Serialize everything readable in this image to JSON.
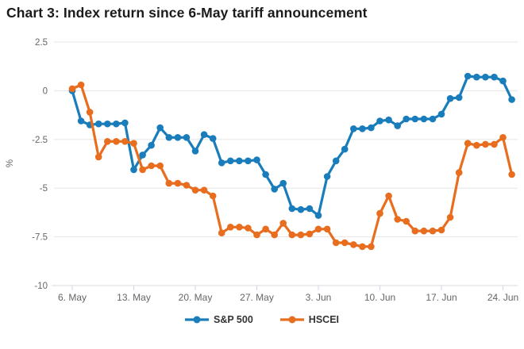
{
  "chart_data": {
    "type": "line",
    "title": "Chart 3: Index return since 6-May tariff announcement",
    "xlabel": "",
    "ylabel": "%",
    "ylim": [
      -10,
      2.5
    ],
    "yticks": [
      2.5,
      0,
      -2.5,
      -5,
      -7.5,
      -10
    ],
    "ytick_labels": [
      "2.5",
      "0",
      "-2.5",
      "-5",
      "-7.5",
      "-10"
    ],
    "x_tick_labels": [
      "6. May",
      "13. May",
      "20. May",
      "27. May",
      "3. Jun",
      "10. Jun",
      "17. Jun",
      "24. Jun"
    ],
    "x_tick_indices": [
      0,
      7,
      14,
      21,
      28,
      35,
      42,
      49
    ],
    "grid": true,
    "legend_position": "bottom",
    "dates": [
      "6 May",
      "7 May",
      "8 May",
      "9 May",
      "10 May",
      "11 May",
      "12 May",
      "13 May",
      "14 May",
      "15 May",
      "16 May",
      "17 May",
      "18 May",
      "19 May",
      "20 May",
      "21 May",
      "22 May",
      "23 May",
      "24 May",
      "25 May",
      "26 May",
      "27 May",
      "28 May",
      "29 May",
      "30 May",
      "31 May",
      "1 Jun",
      "2 Jun",
      "3 Jun",
      "4 Jun",
      "5 Jun",
      "6 Jun",
      "7 Jun",
      "8 Jun",
      "9 Jun",
      "10 Jun",
      "11 Jun",
      "12 Jun",
      "13 Jun",
      "14 Jun",
      "15 Jun",
      "16 Jun",
      "17 Jun",
      "18 Jun",
      "19 Jun",
      "20 Jun",
      "21 Jun",
      "22 Jun",
      "23 Jun",
      "24 Jun",
      "25 Jun"
    ],
    "series": [
      {
        "name": "S&P 500",
        "color": "#1a7dbb",
        "values": [
          0,
          -1.55,
          -1.75,
          -1.7,
          -1.7,
          -1.7,
          -1.65,
          -4.05,
          -3.3,
          -2.8,
          -1.9,
          -2.4,
          -2.4,
          -2.4,
          -3.1,
          -2.25,
          -2.45,
          -3.7,
          -3.6,
          -3.6,
          -3.6,
          -3.55,
          -4.3,
          -5.05,
          -4.75,
          -6.05,
          -6.1,
          -6.05,
          -6.4,
          -4.4,
          -3.6,
          -3.0,
          -1.95,
          -1.95,
          -1.9,
          -1.55,
          -1.5,
          -1.8,
          -1.45,
          -1.45,
          -1.45,
          -1.45,
          -1.2,
          -0.4,
          -0.35,
          0.75,
          0.7,
          0.7,
          0.7,
          0.5,
          -0.45
        ]
      },
      {
        "name": "HSCEI",
        "color": "#e86d1f",
        "values": [
          0.1,
          0.3,
          -1.1,
          -3.4,
          -2.6,
          -2.6,
          -2.6,
          -2.7,
          -4.05,
          -3.85,
          -3.85,
          -4.75,
          -4.75,
          -4.85,
          -5.1,
          -5.1,
          -5.4,
          -7.3,
          -7.0,
          -7.0,
          -7.05,
          -7.4,
          -7.1,
          -7.4,
          -6.8,
          -7.4,
          -7.4,
          -7.35,
          -7.1,
          -7.1,
          -7.8,
          -7.8,
          -7.9,
          -8.0,
          -8.0,
          -6.3,
          -5.4,
          -6.6,
          -6.7,
          -7.2,
          -7.2,
          -7.2,
          -7.15,
          -6.5,
          -4.2,
          -2.7,
          -2.8,
          -2.75,
          -2.75,
          -2.4,
          -4.3
        ]
      }
    ],
    "style": {
      "grid_color": "#e6e6e6",
      "axis_line_color": "#d8d8d8",
      "tick_color": "#ccd6eb",
      "axis_label_color": "#666666",
      "title_color": "#1b1b1b"
    }
  }
}
